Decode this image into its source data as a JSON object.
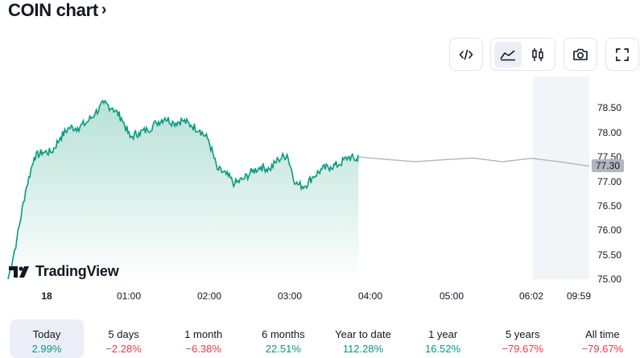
{
  "header": {
    "title": "COIN chart",
    "chevron": "›"
  },
  "toolbar": {
    "embed_icon": "code-icon",
    "area_icon": "area-chart-icon",
    "candles_icon": "candlestick-icon",
    "snapshot_icon": "camera-icon",
    "fullscreen_icon": "fullscreen-icon"
  },
  "chart": {
    "y_ticks": [
      "78.50",
      "78.00",
      "77.50",
      "77.00",
      "76.50",
      "76.00",
      "75.50",
      "75.00"
    ],
    "current_price": "77.30",
    "x_ticks": [
      {
        "label": "18",
        "bold": true
      },
      {
        "label": "01:00",
        "bold": false
      },
      {
        "label": "02:00",
        "bold": false
      },
      {
        "label": "03:00",
        "bold": false
      },
      {
        "label": "04:00",
        "bold": false
      },
      {
        "label": "05:00",
        "bold": false
      },
      {
        "label": "06:02",
        "bold": false
      },
      {
        "label": "09:59",
        "bold": false
      }
    ],
    "logo_text": "TradingView",
    "colors": {
      "line": "#089981",
      "fill_top": "#b3e0d3",
      "extended": "#b2b5be"
    }
  },
  "chart_data": {
    "type": "area",
    "ylim": [
      74.95,
      79.15
    ],
    "xlim_hours": [
      0,
      10.0
    ],
    "x": [
      0,
      0.15,
      0.3,
      0.45,
      0.6,
      0.75,
      0.9,
      1.05,
      1.2,
      1.35,
      1.5,
      1.65,
      1.8,
      1.95,
      2.1,
      2.25,
      2.4,
      2.55,
      2.7,
      2.85,
      3.0,
      3.15,
      3.3,
      3.45,
      3.6,
      3.75,
      3.9,
      4.05,
      4.2,
      4.35,
      4.5,
      4.65,
      4.8,
      4.95,
      5.1,
      5.25,
      5.4,
      5.55,
      5.7,
      5.85,
      6.0,
      6.03
    ],
    "values": [
      75.0,
      75.8,
      76.8,
      77.5,
      77.6,
      77.6,
      77.9,
      78.1,
      78.1,
      78.2,
      78.4,
      78.6,
      78.5,
      78.3,
      77.9,
      78.0,
      78.05,
      78.2,
      78.3,
      78.2,
      78.25,
      78.15,
      78.05,
      77.85,
      77.25,
      77.15,
      76.95,
      77.05,
      77.2,
      77.3,
      77.25,
      77.45,
      77.55,
      76.95,
      76.9,
      77.1,
      77.25,
      77.3,
      77.35,
      77.5,
      77.45,
      77.5
    ],
    "extended_x": [
      6.03,
      6.5,
      7.0,
      7.5,
      8.0,
      8.5,
      9.0,
      9.5,
      10.0
    ],
    "extended_values": [
      77.5,
      77.45,
      77.4,
      77.45,
      77.5,
      77.42,
      77.48,
      77.38,
      77.3
    ]
  },
  "ranges": [
    {
      "label": "Today",
      "value": "2.99%",
      "positive": true,
      "active": true
    },
    {
      "label": "5 days",
      "value": "−2.28%",
      "positive": false,
      "active": false
    },
    {
      "label": "1 month",
      "value": "−6.38%",
      "positive": false,
      "active": false
    },
    {
      "label": "6 months",
      "value": "22.51%",
      "positive": true,
      "active": false
    },
    {
      "label": "Year to date",
      "value": "112.28%",
      "positive": true,
      "active": false
    },
    {
      "label": "1 year",
      "value": "16.52%",
      "positive": true,
      "active": false
    },
    {
      "label": "5 years",
      "value": "−79.67%",
      "positive": false,
      "active": false
    },
    {
      "label": "All time",
      "value": "−79.67%",
      "positive": false,
      "active": false
    }
  ]
}
